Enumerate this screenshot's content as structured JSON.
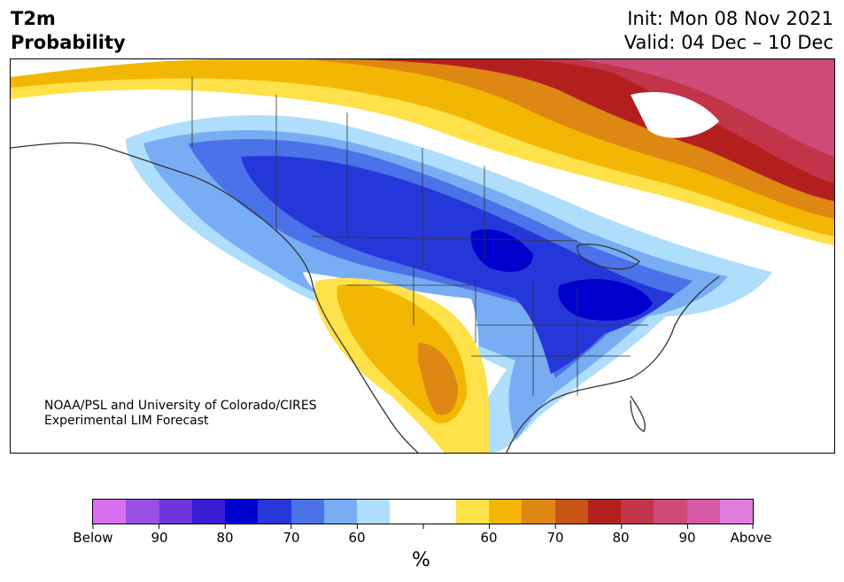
{
  "header": {
    "title_line1": "T2m",
    "title_line2": "Probability",
    "init": "Init: Mon 08 Nov 2021",
    "valid": "Valid: 04 Dec – 10 Dec"
  },
  "map": {
    "credit_line1": "NOAA/PSL and University of Colorado/CIRES",
    "credit_line2": "Experimental LIM Forecast"
  },
  "colorbar": {
    "colors": [
      "#d76fee",
      "#9a4ee6",
      "#6c35dc",
      "#3a1bd6",
      "#0000cc",
      "#2637da",
      "#4b72e8",
      "#78adf4",
      "#aedefc",
      "#ffffff",
      "#ffffff",
      "#ffe24a",
      "#f2b705",
      "#de8712",
      "#c85415",
      "#b31f1f",
      "#c23448",
      "#cf4a78",
      "#d45aa8",
      "#e07be0"
    ],
    "labels": [
      "Below",
      "90",
      "80",
      "70",
      "60",
      "60",
      "70",
      "80",
      "90",
      "Above"
    ],
    "unit": "%"
  }
}
